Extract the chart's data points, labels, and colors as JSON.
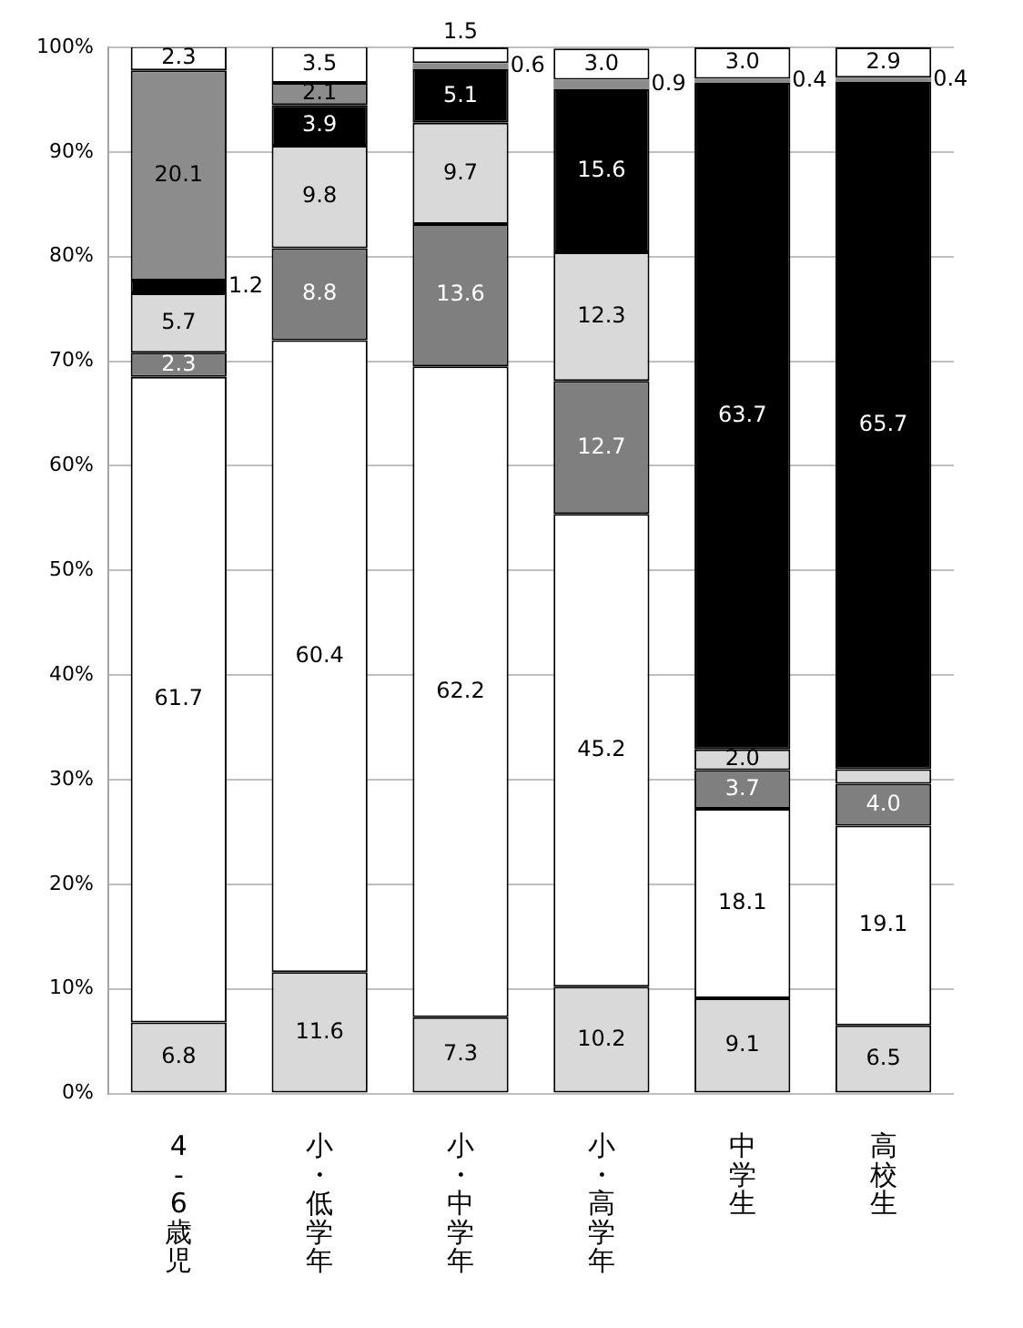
{
  "chart_data": {
    "type": "bar",
    "stacked": true,
    "categories": [
      "4-6歳児",
      "小・低学年",
      "小・中学年",
      "小・高学年",
      "中学生",
      "高校生"
    ],
    "series": [
      {
        "color": "#d9d9d9",
        "values": [
          6.8,
          11.6,
          7.3,
          10.2,
          9.1,
          6.5
        ]
      },
      {
        "color": "#ffffff",
        "values": [
          61.7,
          60.4,
          62.2,
          45.2,
          18.1,
          19.1
        ]
      },
      {
        "color": "#7f7f7f",
        "values": [
          2.3,
          8.8,
          13.6,
          12.7,
          3.7,
          4.0
        ],
        "value_labels": [
          "2.3",
          "8.8",
          "13.6",
          "12.7",
          "3.7",
          "4.0"
        ]
      },
      {
        "color": "#d9d9d9",
        "values": [
          5.7,
          9.8,
          9.7,
          12.3,
          2.0,
          1.4
        ],
        "value_labels": [
          "5.7",
          "9.8",
          "9.7",
          "12.3",
          "2.0",
          null
        ]
      },
      {
        "color": "#000000",
        "values": [
          1.2,
          3.9,
          5.1,
          15.6,
          63.7,
          65.7
        ]
      },
      {
        "color": "#8c8c8c",
        "values": [
          20.1,
          2.1,
          0.6,
          0.9,
          0.4,
          0.4
        ]
      },
      {
        "color": "#ffffff",
        "values": [
          2.3,
          3.5,
          1.5,
          3.0,
          3.0,
          2.9
        ],
        "value_labels": [
          "2.3",
          "3.5",
          "1.5",
          "3.0",
          "3.0",
          "2.9"
        ]
      }
    ],
    "ylim": [
      0,
      100
    ],
    "yticks": [
      {
        "value": 0,
        "label": "0%"
      },
      {
        "value": 10,
        "label": "10%"
      },
      {
        "value": 20,
        "label": "20%"
      },
      {
        "value": 30,
        "label": "30%"
      },
      {
        "value": 40,
        "label": "40%"
      },
      {
        "value": 50,
        "label": "50%"
      },
      {
        "value": 60,
        "label": "60%"
      },
      {
        "value": 70,
        "label": "70%"
      },
      {
        "value": 80,
        "label": "80%"
      },
      {
        "value": 90,
        "label": "90%"
      },
      {
        "value": 100,
        "label": "100%"
      }
    ],
    "grid": "y",
    "legend": false,
    "data_labels": true
  }
}
